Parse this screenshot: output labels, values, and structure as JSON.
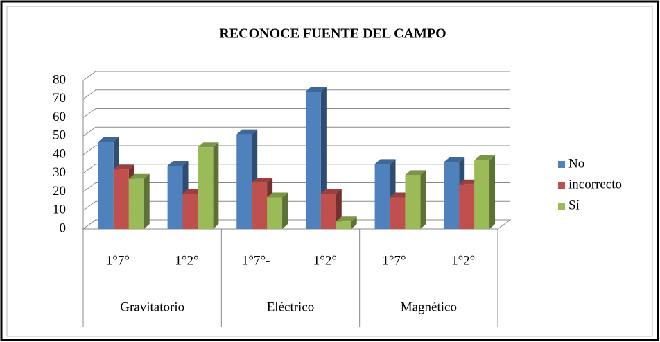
{
  "chart_data": {
    "type": "bar3d",
    "title": "RECONOCE FUENTE DEL CAMPO",
    "categories": [
      "1°7°",
      "1°2°",
      "1°7°-",
      "1°2°",
      "1°7°",
      "1°2°"
    ],
    "groups": [
      "Gravitatorio",
      "Eléctrico",
      "Magnético"
    ],
    "series": [
      {
        "name": "No",
        "color": "#4f81bd",
        "values": [
          47,
          34,
          51,
          74,
          35,
          36
        ]
      },
      {
        "name": "incorrecto",
        "color": "#c0504d",
        "values": [
          32,
          19,
          25,
          19,
          17,
          24
        ]
      },
      {
        "name": "Sí",
        "color": "#9bbb59",
        "values": [
          27,
          44,
          17,
          4,
          29,
          37
        ]
      }
    ],
    "ylim": [
      0,
      80
    ],
    "yticks": [
      0,
      10,
      20,
      30,
      40,
      50,
      60,
      70,
      80
    ],
    "grid": true,
    "legend": "right"
  }
}
